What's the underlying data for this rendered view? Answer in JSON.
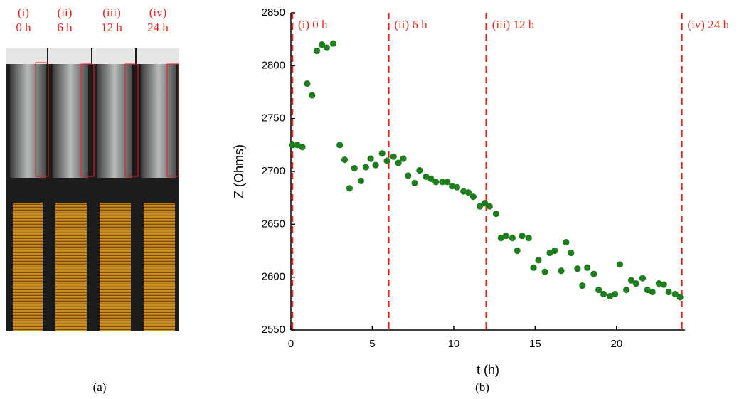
{
  "panel_a": {
    "labels": [
      [
        "(i)",
        "0 h"
      ],
      [
        "(ii)",
        "6 h"
      ],
      [
        "(iii)",
        "12 h"
      ],
      [
        "(iv)",
        "24 h"
      ]
    ],
    "caption": "(a)"
  },
  "panel_b_caption": "(b)",
  "chart_data": {
    "type": "scatter",
    "x_label": "t (h)",
    "y_label": "Z (Ohms)",
    "x": [
      0.1,
      0.4,
      0.7,
      1.0,
      1.3,
      1.6,
      1.9,
      2.2,
      2.6,
      3.0,
      3.3,
      3.6,
      3.9,
      4.3,
      4.6,
      4.9,
      5.2,
      5.6,
      5.9,
      6.3,
      6.6,
      6.9,
      7.2,
      7.6,
      7.9,
      8.3,
      8.6,
      8.9,
      9.3,
      9.6,
      9.9,
      10.2,
      10.6,
      10.9,
      11.2,
      11.6,
      11.9,
      12.2,
      12.6,
      12.9,
      13.2,
      13.6,
      13.9,
      14.2,
      14.6,
      14.9,
      15.2,
      15.6,
      15.9,
      16.2,
      16.6,
      16.9,
      17.2,
      17.6,
      17.9,
      18.2,
      18.6,
      18.9,
      19.2,
      19.6,
      19.9,
      20.2,
      20.6,
      20.9,
      21.2,
      21.6,
      21.9,
      22.2,
      22.6,
      22.9,
      23.2,
      23.6,
      23.9
    ],
    "values": [
      2725,
      2725,
      2723,
      2783,
      2772,
      2814,
      2820,
      2817,
      2821,
      2725,
      2711,
      2684,
      2703,
      2691,
      2704,
      2712,
      2706,
      2717,
      2710,
      2714,
      2708,
      2712,
      2696,
      2689,
      2701,
      2695,
      2693,
      2690,
      2690,
      2690,
      2686,
      2685,
      2681,
      2680,
      2676,
      2667,
      2670,
      2667,
      2660,
      2637,
      2639,
      2637,
      2625,
      2639,
      2637,
      2609,
      2616,
      2605,
      2623,
      2625,
      2606,
      2633,
      2623,
      2608,
      2592,
      2609,
      2603,
      2588,
      2584,
      2582,
      2584,
      2612,
      2588,
      2597,
      2594,
      2599,
      2588,
      2586,
      2594,
      2593,
      2586,
      2584,
      2581
    ],
    "color": "#1e7d1e",
    "xlim": [
      0,
      24.2
    ],
    "ylim": [
      2550,
      2850
    ],
    "xticks": [
      0,
      5,
      10,
      15,
      20
    ],
    "yticks": [
      2550,
      2600,
      2650,
      2700,
      2750,
      2800,
      2850
    ],
    "annotations": [
      {
        "text": "(i) 0 h",
        "x": 0
      },
      {
        "text": "(ii) 6 h",
        "x": 6
      },
      {
        "text": "(iii) 12 h",
        "x": 12
      },
      {
        "text": "(iv) 24 h",
        "x": 24
      }
    ],
    "annotation_color": "#e8261e"
  }
}
